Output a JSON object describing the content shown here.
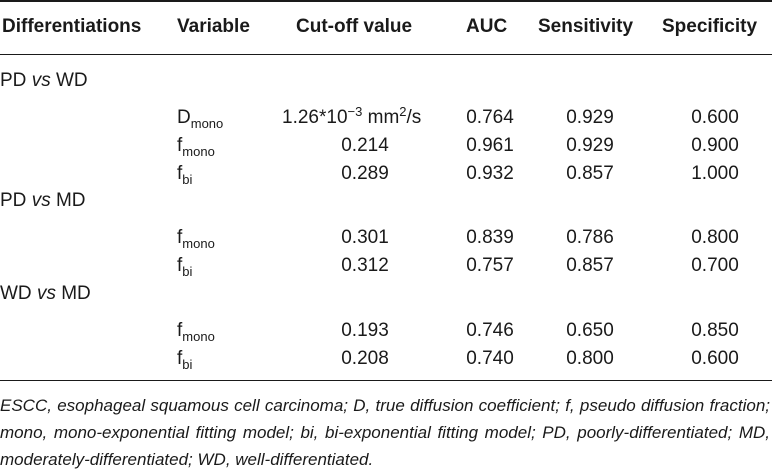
{
  "headers": {
    "differentiations": "Differentiations",
    "variable": "Variable",
    "cutoff": "Cut-off value",
    "auc": "AUC",
    "sensitivity": "Sensitivity",
    "specificity": "Specificity"
  },
  "groups": [
    {
      "left": "PD",
      "vs": "vs",
      "right": "WD",
      "rows": [
        {
          "var_base": "D",
          "var_sub": "mono",
          "cutoff_text": "1.26*10",
          "cutoff_exp": "−3",
          "cutoff_unit_pre": " mm",
          "cutoff_unit_exp": "2",
          "cutoff_unit_post": "/s",
          "auc": "0.764",
          "sensitivity": "0.929",
          "specificity": "0.600"
        },
        {
          "var_base": "f",
          "var_sub": "mono",
          "cutoff": "0.214",
          "auc": "0.961",
          "sensitivity": "0.929",
          "specificity": "0.900"
        },
        {
          "var_base": "f",
          "var_sub": "bi",
          "cutoff": "0.289",
          "auc": "0.932",
          "sensitivity": "0.857",
          "specificity": "1.000"
        }
      ]
    },
    {
      "left": "PD",
      "vs": "vs",
      "right": "MD",
      "rows": [
        {
          "var_base": "f",
          "var_sub": "mono",
          "cutoff": "0.301",
          "auc": "0.839",
          "sensitivity": "0.786",
          "specificity": "0.800"
        },
        {
          "var_base": "f",
          "var_sub": "bi",
          "cutoff": "0.312",
          "auc": "0.757",
          "sensitivity": "0.857",
          "specificity": "0.700"
        }
      ]
    },
    {
      "left": "WD",
      "vs": "vs",
      "right": "MD",
      "rows": [
        {
          "var_base": "f",
          "var_sub": "mono",
          "cutoff": "0.193",
          "auc": "0.746",
          "sensitivity": "0.650",
          "specificity": "0.850"
        },
        {
          "var_base": "f",
          "var_sub": "bi",
          "cutoff": "0.208",
          "auc": "0.740",
          "sensitivity": "0.800",
          "specificity": "0.600"
        }
      ]
    }
  ],
  "footnote": "ESCC, esophageal squamous cell carcinoma; D, true diffusion coefficient; f, pseudo diffusion fraction; mono, mono-exponential fitting model; bi, bi-exponential fitting model; PD, poorly-differentiated; MD, moderately-differentiated; WD, well-differentiated."
}
